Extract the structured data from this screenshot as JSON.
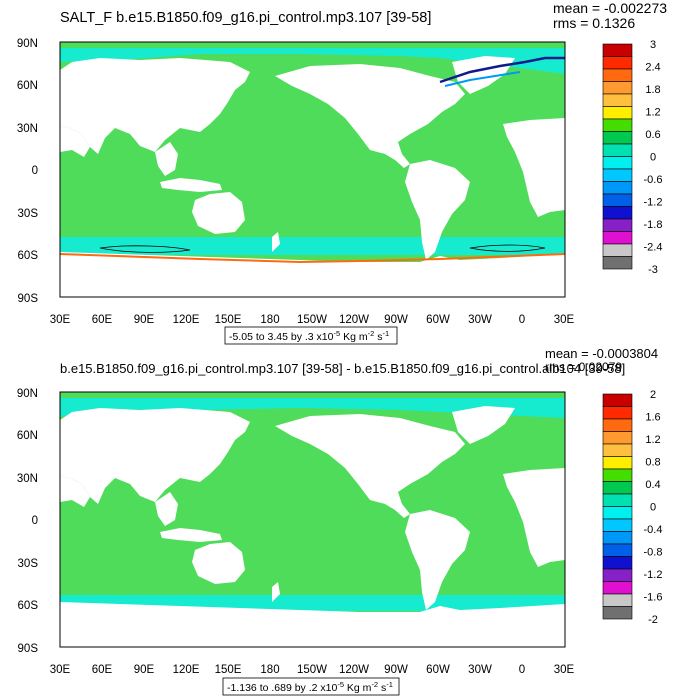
{
  "chart_data": [
    {
      "type": "heatmap",
      "title": "SALT_F b.e15.B1850.f09_g16.pi_control.mp3.107 [39-58]",
      "stats": {
        "mean": "mean = -0.002273",
        "rms": "rms = 0.1326"
      },
      "x_ticks": [
        "30E",
        "60E",
        "90E",
        "120E",
        "150E",
        "180",
        "150W",
        "120W",
        "90W",
        "60W",
        "30W",
        "0",
        "30E"
      ],
      "y_ticks": [
        "90N",
        "60N",
        "30N",
        "0",
        "30S",
        "60S",
        "90S"
      ],
      "range_label": {
        "text": "-5.05 to 3.45 by .3 x10",
        "exp": "-5",
        "units": " Kg m",
        "units_exp1": "-2",
        "units_mid": " s",
        "units_exp2": "-1"
      },
      "colorbar": {
        "labels": [
          "3",
          "2.4",
          "1.8",
          "1.2",
          "0.6",
          "0",
          "-0.6",
          "-1.2",
          "-1.8",
          "-2.4",
          "-3"
        ],
        "colors": [
          "#c80000",
          "#ff2a00",
          "#ff6a10",
          "#ff9a30",
          "#ffc040",
          "#ffee00",
          "#44dd00",
          "#00c850",
          "#00e0b0",
          "#00f0f0",
          "#00c8ff",
          "#0098f8",
          "#0060e8",
          "#1010d0",
          "#8820c8",
          "#e010d0",
          "#c8c8c8",
          "#707070"
        ]
      },
      "grid": false
    },
    {
      "type": "heatmap",
      "title": "b.e15.B1850.f09_g16.pi_control.mp3.107 [39-58] - b.e15.B1850.f09_g16.pi_control.alb104 [39-58]",
      "stats": {
        "mean": "mean = -0.0003804",
        "rms": "rms = 0.02079"
      },
      "x_ticks": [
        "30E",
        "60E",
        "90E",
        "120E",
        "150E",
        "180",
        "150W",
        "120W",
        "90W",
        "60W",
        "30W",
        "0",
        "30E"
      ],
      "y_ticks": [
        "90N",
        "60N",
        "30N",
        "0",
        "30S",
        "60S",
        "90S"
      ],
      "range_label": {
        "text": "-1.136 to .689 by .2 x10",
        "exp": "-5",
        "units": " Kg m",
        "units_exp1": "-2",
        "units_mid": " s",
        "units_exp2": "-1"
      },
      "colorbar": {
        "labels": [
          "2",
          "1.6",
          "1.2",
          "0.8",
          "0.4",
          "0",
          "-0.4",
          "-0.8",
          "-1.2",
          "-1.6",
          "-2"
        ],
        "colors": [
          "#c80000",
          "#ff2a00",
          "#ff6a10",
          "#ff9a30",
          "#ffc040",
          "#ffee00",
          "#44dd00",
          "#00c850",
          "#00e0b0",
          "#00f0f0",
          "#00c8ff",
          "#0098f8",
          "#0060e8",
          "#1010d0",
          "#8820c8",
          "#e010d0",
          "#c8c8c8",
          "#707070"
        ]
      },
      "grid": false
    }
  ]
}
